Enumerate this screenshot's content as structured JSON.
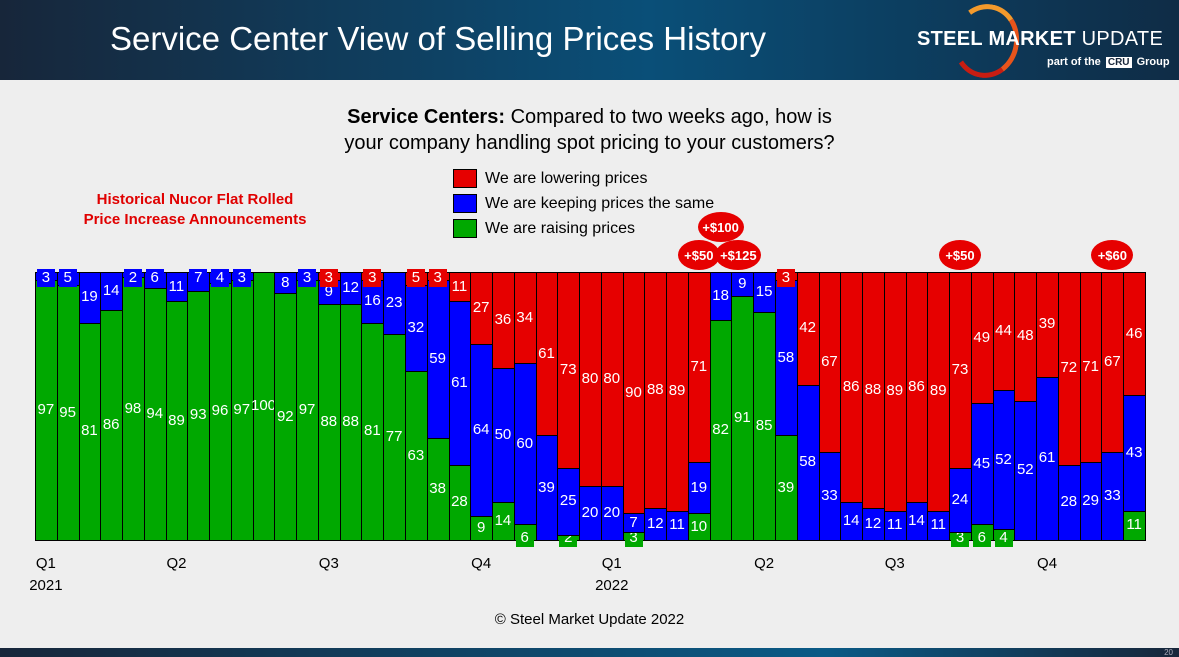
{
  "header": {
    "title": "Service Center View of Selling Prices History",
    "logo_text_bold": "STEEL MARKET",
    "logo_text_light": " UPDATE",
    "logo_sub_prefix": "part of the",
    "logo_sub_brand": "CRU",
    "logo_sub_suffix": "Group"
  },
  "question": {
    "bold": "Service Centers:",
    "line1": " Compared to two weeks ago, how is",
    "line2": "your company handling spot pricing to your customers?"
  },
  "historical_note": {
    "line1": "Historical Nucor Flat Rolled",
    "line2": "Price Increase Announcements"
  },
  "copyright": "© Steel Market Update 2022",
  "page_number": "20",
  "chart_data": {
    "type": "bar",
    "stacked": true,
    "percent": true,
    "ylim": [
      0,
      100
    ],
    "colors": {
      "lowering": "#e60000",
      "same": "#0000ff",
      "raising": "#00a800"
    },
    "legend": [
      "We are lowering prices",
      "We are keeping prices the same",
      "We are raising prices"
    ],
    "legend_placement": "top",
    "x_ticks": [
      {
        "bar": 1,
        "label": "Q1",
        "year": "2021"
      },
      {
        "bar": 7,
        "label": "Q2",
        "year": ""
      },
      {
        "bar": 14,
        "label": "Q3",
        "year": ""
      },
      {
        "bar": 21,
        "label": "Q4",
        "year": ""
      },
      {
        "bar": 27,
        "label": "Q1",
        "year": "2022"
      },
      {
        "bar": 34,
        "label": "Q2",
        "year": ""
      },
      {
        "bar": 40,
        "label": "Q3",
        "year": ""
      },
      {
        "bar": 47,
        "label": "Q4",
        "year": ""
      }
    ],
    "series": [
      {
        "name": "We are raising prices",
        "values": [
          97,
          95,
          81,
          86,
          98,
          94,
          89,
          93,
          96,
          97,
          100,
          92,
          97,
          88,
          88,
          81,
          77,
          63,
          38,
          28,
          9,
          14,
          6,
          0,
          2,
          0,
          0,
          3,
          0,
          0,
          10,
          82,
          91,
          85,
          39,
          0,
          0,
          0,
          0,
          0,
          0,
          0,
          3,
          6,
          4,
          0,
          0,
          0,
          0,
          0,
          11
        ]
      },
      {
        "name": "We are keeping prices the same",
        "values": [
          3,
          5,
          19,
          14,
          2,
          6,
          11,
          7,
          4,
          3,
          0,
          8,
          3,
          9,
          12,
          16,
          23,
          32,
          59,
          61,
          64,
          50,
          60,
          39,
          25,
          20,
          20,
          7,
          12,
          11,
          19,
          18,
          9,
          15,
          58,
          58,
          33,
          14,
          12,
          11,
          14,
          11,
          24,
          45,
          52,
          52,
          61,
          28,
          29,
          33,
          43
        ]
      },
      {
        "name": "We are lowering prices",
        "values": [
          0,
          0,
          0,
          0,
          0,
          0,
          0,
          0,
          0,
          0,
          0,
          0,
          0,
          3,
          0,
          3,
          0,
          5,
          3,
          11,
          27,
          36,
          34,
          61,
          73,
          80,
          80,
          90,
          88,
          89,
          71,
          0,
          0,
          0,
          3,
          42,
          67,
          86,
          88,
          89,
          86,
          89,
          73,
          49,
          44,
          48,
          39,
          72,
          71,
          67,
          46
        ]
      }
    ],
    "annotations": [
      {
        "bar": 31,
        "text": "+$50"
      },
      {
        "bar": 32,
        "text": "+$100"
      },
      {
        "bar": 33,
        "text": "+$125"
      },
      {
        "bar": 43,
        "text": "+$50"
      },
      {
        "bar": 50,
        "text": "+$60"
      }
    ]
  }
}
